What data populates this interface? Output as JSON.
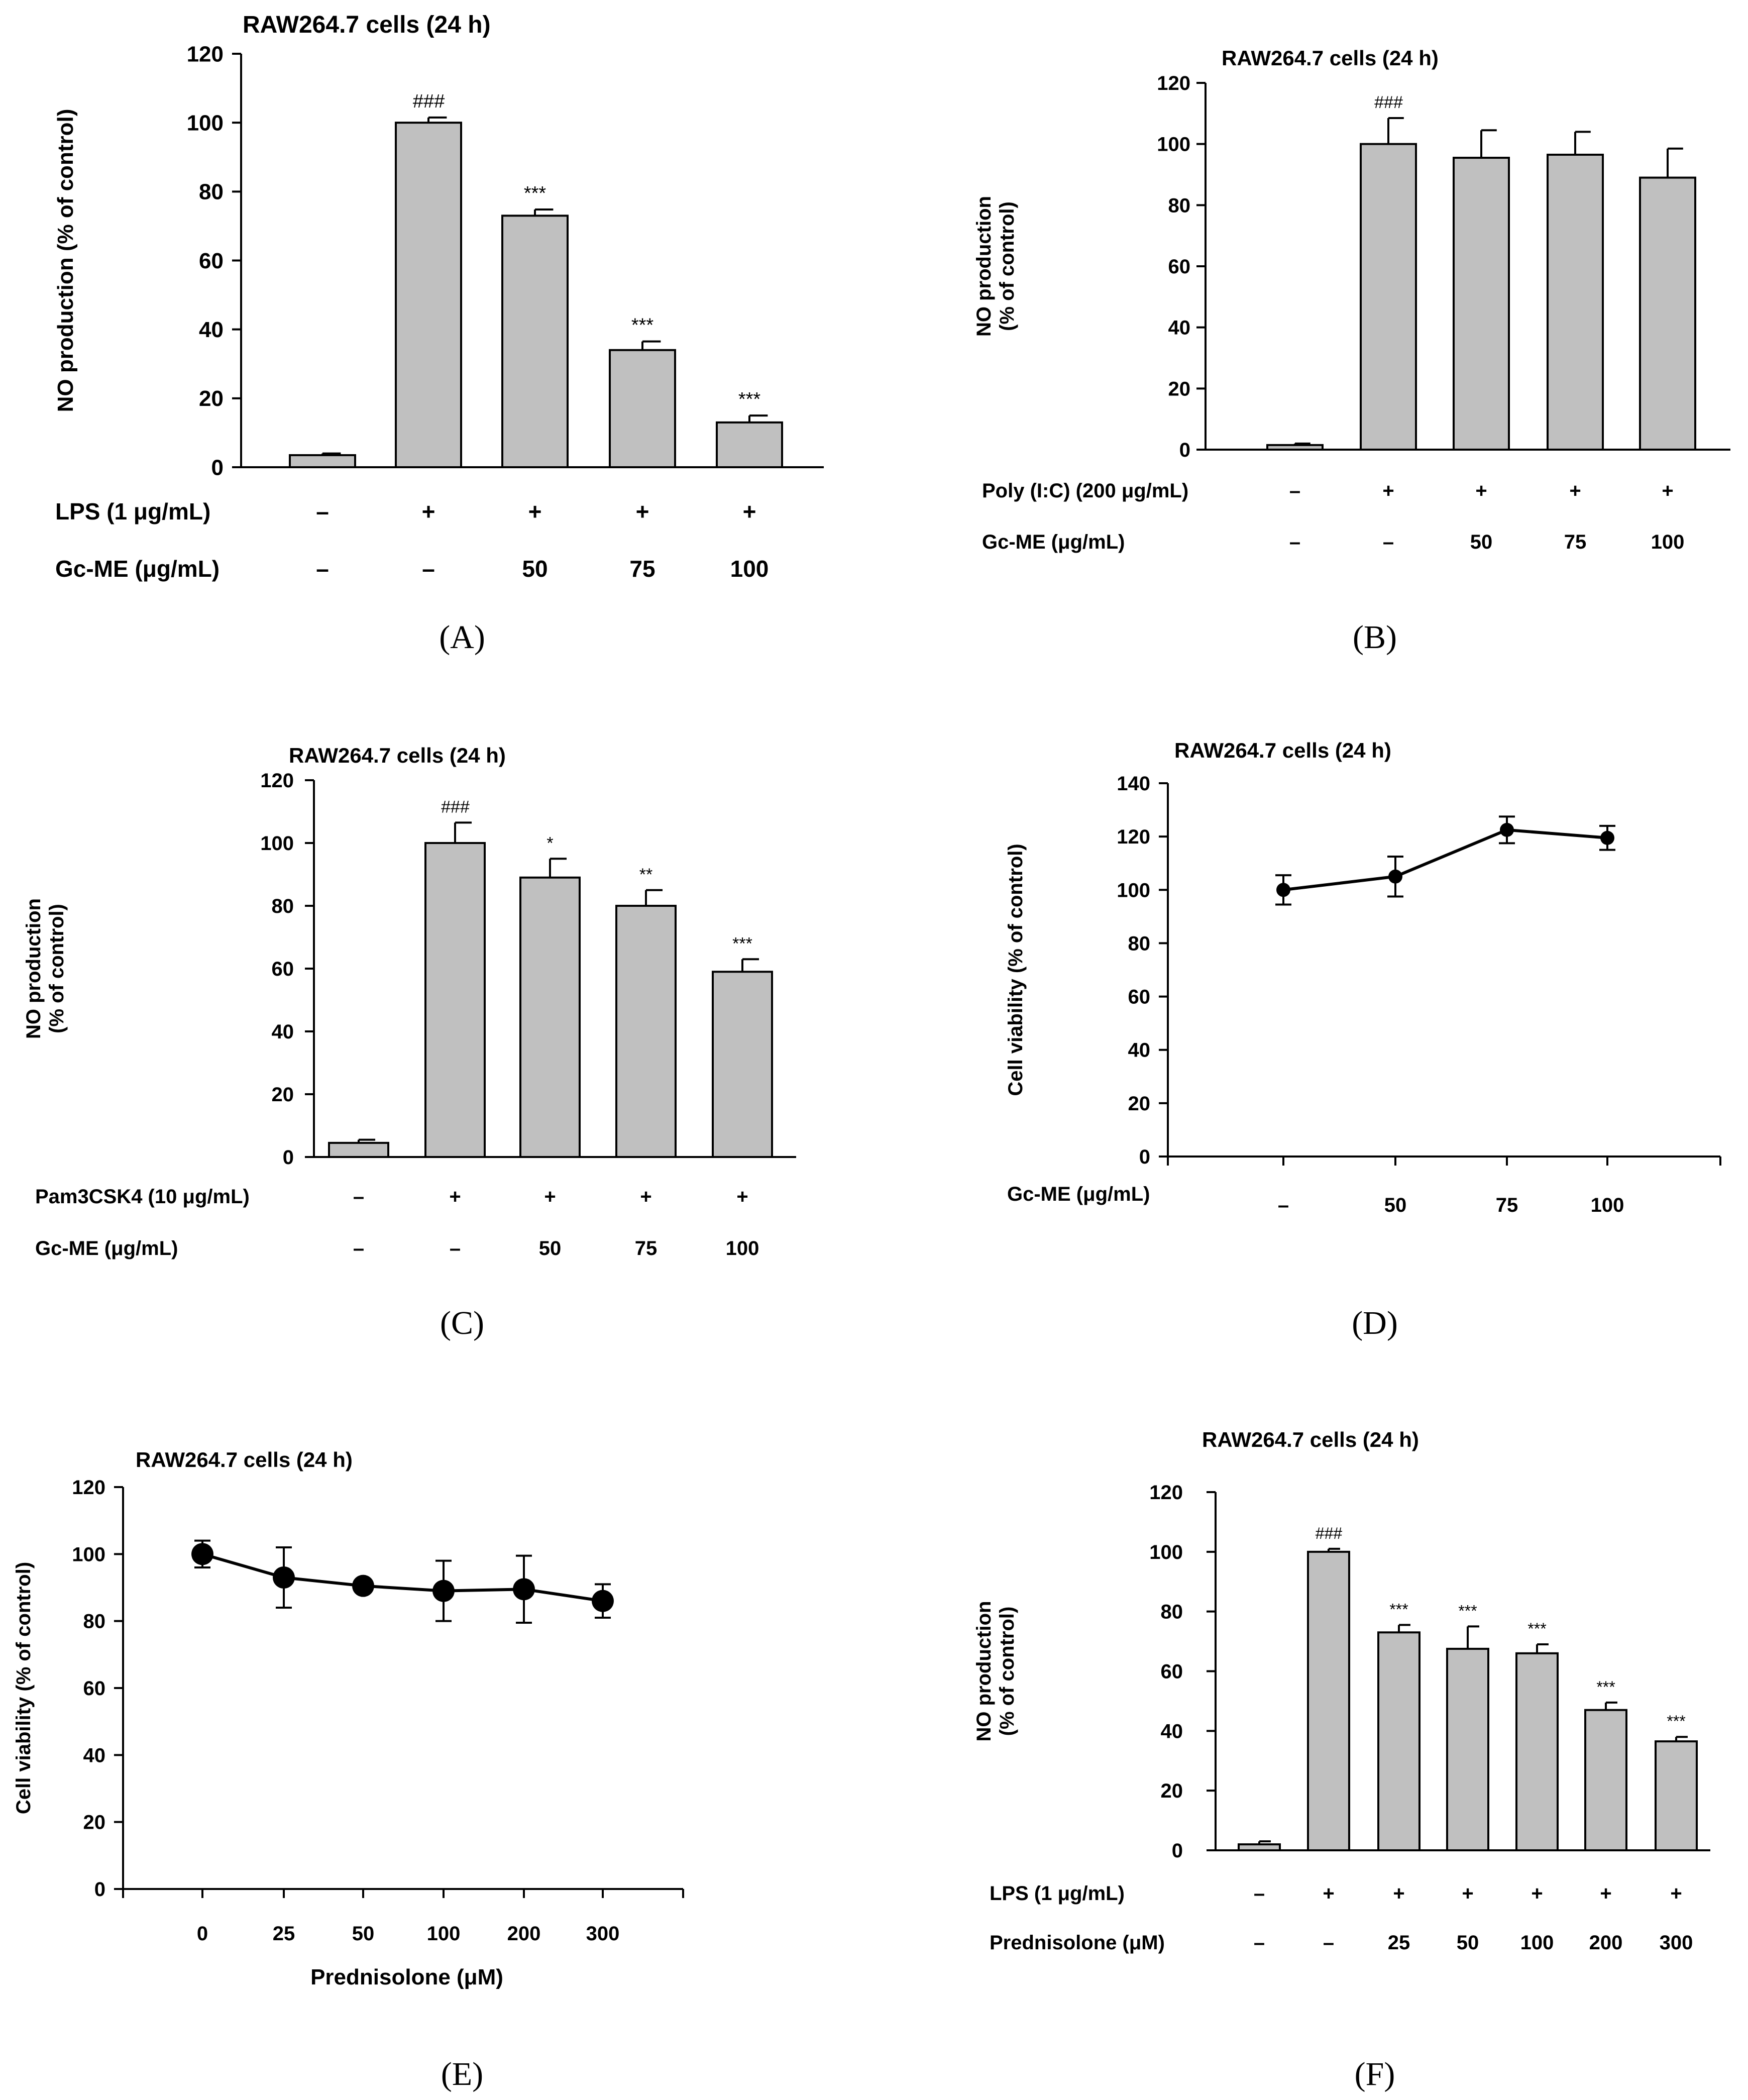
{
  "figure": {
    "title": "RAW264.7 NO production and cell viability panels"
  },
  "colors": {
    "bar_fill": "#c0c0c0",
    "stroke": "#000000",
    "background": "#ffffff"
  },
  "chart_data": [
    {
      "id": "A",
      "panel_label": "(A)",
      "type": "bar",
      "title": "RAW264.7 cells (24 h)",
      "ylabel": "NO production (% of control)",
      "ylabel_lines": [
        "NO production (% of control)"
      ],
      "ylim": [
        0,
        120
      ],
      "yticks": [
        "0",
        "20",
        "40",
        "60",
        "80",
        "100",
        "120"
      ],
      "categories": [
        "control",
        "LPS",
        "LPS+50",
        "LPS+75",
        "LPS+100"
      ],
      "values": [
        3.5,
        100,
        73,
        34,
        13
      ],
      "errors": [
        0.5,
        1.5,
        1.8,
        2.5,
        2
      ],
      "annotations": [
        "",
        "###",
        "***",
        "***",
        "***"
      ],
      "treatment_rows": [
        {
          "label": "LPS (1 μg/mL)",
          "values": [
            "–",
            "+",
            "+",
            "+",
            "+"
          ]
        },
        {
          "label": "Gc-ME (μg/mL)",
          "values": [
            "–",
            "–",
            "50",
            "75",
            "100"
          ]
        }
      ]
    },
    {
      "id": "B",
      "panel_label": "(B)",
      "type": "bar",
      "title": "RAW264.7 cells (24 h)",
      "ylabel": "NO production (% of control)",
      "ylabel_lines": [
        "NO production",
        "(% of control)"
      ],
      "ylim": [
        0,
        120
      ],
      "yticks": [
        "0",
        "20",
        "40",
        "60",
        "80",
        "100",
        "120"
      ],
      "categories": [
        "control",
        "Poly(I:C)",
        "Poly+50",
        "Poly+75",
        "Poly+100"
      ],
      "values": [
        1.5,
        100,
        95.5,
        96.5,
        89
      ],
      "errors": [
        0.5,
        8.5,
        9,
        7.5,
        9.5
      ],
      "annotations": [
        "",
        "###",
        "",
        "",
        ""
      ],
      "treatment_rows": [
        {
          "label": "Poly (I:C) (200 μg/mL)",
          "values": [
            "–",
            "+",
            "+",
            "+",
            "+"
          ]
        },
        {
          "label": "Gc-ME (μg/mL)",
          "values": [
            "–",
            "–",
            "50",
            "75",
            "100"
          ]
        }
      ]
    },
    {
      "id": "C",
      "panel_label": "(C)",
      "type": "bar",
      "title": "RAW264.7 cells (24 h)",
      "ylabel": "NO production (% of control)",
      "ylabel_lines": [
        "NO production",
        "(% of control)"
      ],
      "ylim": [
        0,
        120
      ],
      "yticks": [
        "0",
        "20",
        "40",
        "60",
        "80",
        "100",
        "120"
      ],
      "categories": [
        "control",
        "Pam3CSK4",
        "Pam+50",
        "Pam+75",
        "Pam+100"
      ],
      "values": [
        4.5,
        100,
        89,
        80,
        59
      ],
      "errors": [
        1,
        6.5,
        6,
        5,
        4
      ],
      "annotations": [
        "",
        "###",
        "*",
        "**",
        "***"
      ],
      "treatment_rows": [
        {
          "label": "Pam3CSK4 (10 μg/mL)",
          "values": [
            "–",
            "+",
            "+",
            "+",
            "+"
          ]
        },
        {
          "label": "Gc-ME (μg/mL)",
          "values": [
            "–",
            "–",
            "50",
            "75",
            "100"
          ]
        }
      ]
    },
    {
      "id": "D",
      "panel_label": "(D)",
      "type": "line",
      "title": "RAW264.7 cells (24 h)",
      "ylabel": "Cell viability (% of control)",
      "ylabel_lines": [
        "Cell viability  (% of control)"
      ],
      "ylim": [
        0,
        140
      ],
      "yticks": [
        "0",
        "20",
        "40",
        "60",
        "80",
        "100",
        "120",
        "140"
      ],
      "x_labels": [
        "–",
        "50",
        "75",
        "100"
      ],
      "values": [
        100,
        105,
        122.5,
        119.5
      ],
      "errors": [
        5.5,
        7.5,
        5,
        4.5
      ],
      "treatment_rows": [
        {
          "label": "Gc-ME (μg/mL)",
          "values": []
        }
      ]
    },
    {
      "id": "E",
      "panel_label": "(E)",
      "type": "line",
      "title": "RAW264.7 cells (24 h)",
      "ylabel": "Cell viability (% of control)",
      "ylabel_lines": [
        "Cell viability  (% of control)"
      ],
      "ylim": [
        0,
        120
      ],
      "yticks": [
        "0",
        "20",
        "40",
        "60",
        "80",
        "100",
        "120"
      ],
      "x_labels": [
        "0",
        "25",
        "50",
        "100",
        "200",
        "300"
      ],
      "xlabel": "Prednisolone (μM)",
      "values": [
        100,
        93,
        90.5,
        89,
        89.5,
        86
      ],
      "errors": [
        4,
        9,
        1.5,
        9,
        10,
        5
      ],
      "treatment_rows": []
    },
    {
      "id": "F",
      "panel_label": "(F)",
      "type": "bar",
      "title": "RAW264.7 cells (24 h)",
      "ylabel": "NO production (% of control)",
      "ylabel_lines": [
        "NO production",
        "(% of control)"
      ],
      "ylim": [
        0,
        120
      ],
      "yticks": [
        "0",
        "20",
        "40",
        "60",
        "80",
        "100",
        "120"
      ],
      "categories": [
        "control",
        "LPS",
        "LPS+25",
        "LPS+50",
        "LPS+100",
        "LPS+200",
        "LPS+300"
      ],
      "values": [
        2,
        100,
        73,
        67.5,
        66,
        47,
        36.5
      ],
      "errors": [
        1,
        1,
        2.5,
        7.5,
        3,
        2.5,
        1.5
      ],
      "annotations": [
        "",
        "###",
        "***",
        "***",
        "***",
        "***",
        "***"
      ],
      "treatment_rows": [
        {
          "label": "LPS (1 μg/mL)",
          "values": [
            "–",
            "+",
            "+",
            "+",
            "+",
            "+",
            "+"
          ]
        },
        {
          "label": "Prednisolone (μM)",
          "values": [
            "–",
            "–",
            "25",
            "50",
            "100",
            "200",
            "300"
          ]
        }
      ]
    }
  ]
}
